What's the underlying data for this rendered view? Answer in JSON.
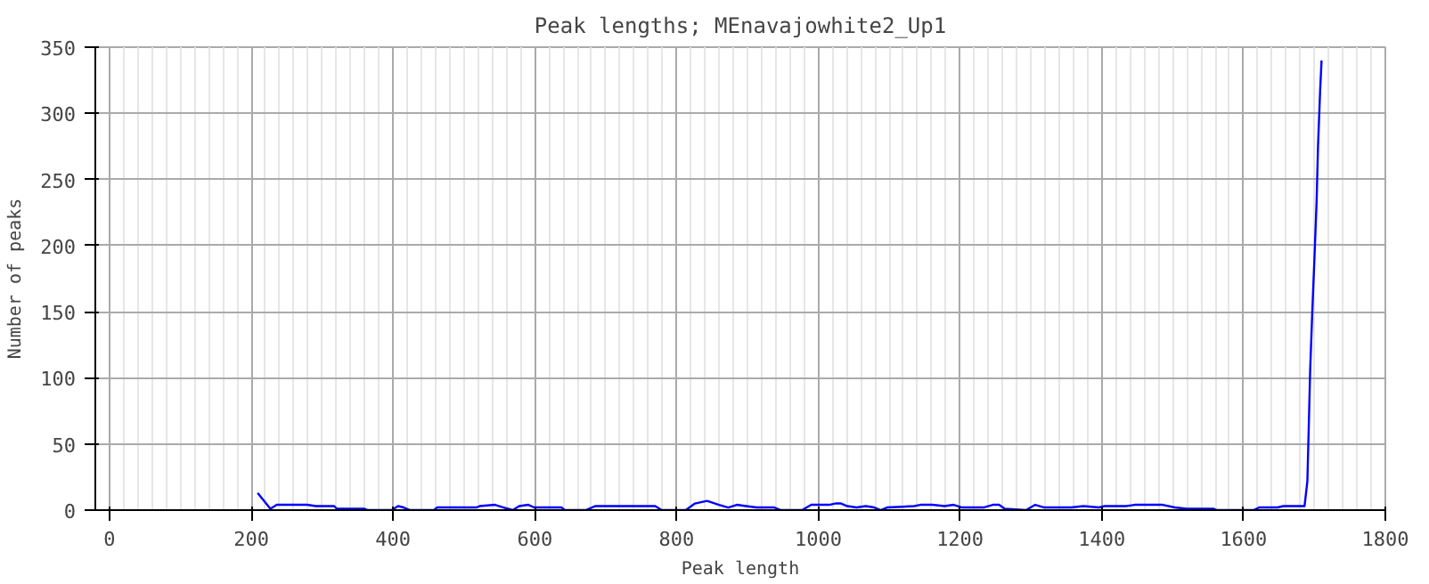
{
  "chart_data": {
    "type": "line",
    "title": "Peak lengths; MEnavajowhite2_Up1",
    "xlabel": "Peak length",
    "ylabel": "Number of peaks",
    "x": [
      209,
      227,
      236,
      249,
      279,
      291,
      317,
      321,
      360,
      364,
      398,
      407,
      415,
      424,
      458,
      462,
      518,
      522,
      544,
      556,
      569,
      578,
      591,
      599,
      638,
      642,
      672,
      685,
      770,
      779,
      813,
      826,
      843,
      860,
      873,
      885,
      898,
      913,
      938,
      947,
      977,
      990,
      1015,
      1024,
      1032,
      1041,
      1054,
      1067,
      1079,
      1088,
      1097,
      1135,
      1144,
      1161,
      1178,
      1191,
      1203,
      1233,
      1246,
      1255,
      1263,
      1293,
      1306,
      1319,
      1357,
      1374,
      1396,
      1404,
      1434,
      1447,
      1464,
      1486,
      1503,
      1520,
      1558,
      1562,
      1614,
      1622,
      1635,
      1648,
      1656,
      1686,
      1690,
      1692,
      1694,
      1697,
      1700,
      1703,
      1705,
      1708,
      1710
    ],
    "series": [
      {
        "color": "#0000ff",
        "values": [
          13,
          1,
          4,
          4,
          4,
          3,
          3,
          1,
          1,
          0,
          0,
          3,
          2,
          0,
          0,
          2,
          2,
          3,
          4,
          2,
          0,
          3,
          4,
          2,
          2,
          0,
          0,
          3,
          3,
          0,
          0,
          5,
          7,
          4,
          2,
          4,
          3,
          2,
          2,
          0,
          0,
          4,
          4,
          5,
          5,
          3,
          2,
          3,
          2,
          0,
          2,
          3,
          4,
          4,
          3,
          4,
          2,
          2,
          4,
          4,
          1,
          0,
          4,
          2,
          2,
          3,
          2,
          3,
          3,
          4,
          4,
          4,
          2,
          1,
          1,
          0,
          0,
          2,
          2,
          2,
          3,
          3,
          22,
          64,
          107,
          151,
          191,
          233,
          275,
          317,
          340
        ]
      }
    ],
    "xlim": [
      -20,
      1800
    ],
    "ylim": [
      0,
      350
    ],
    "xticks": [
      0,
      200,
      400,
      600,
      800,
      1000,
      1200,
      1400,
      1600,
      1800
    ],
    "yticks": [
      0,
      50,
      100,
      150,
      200,
      250,
      300,
      350
    ],
    "grid": true,
    "line_style": "solid",
    "marker": "none"
  }
}
